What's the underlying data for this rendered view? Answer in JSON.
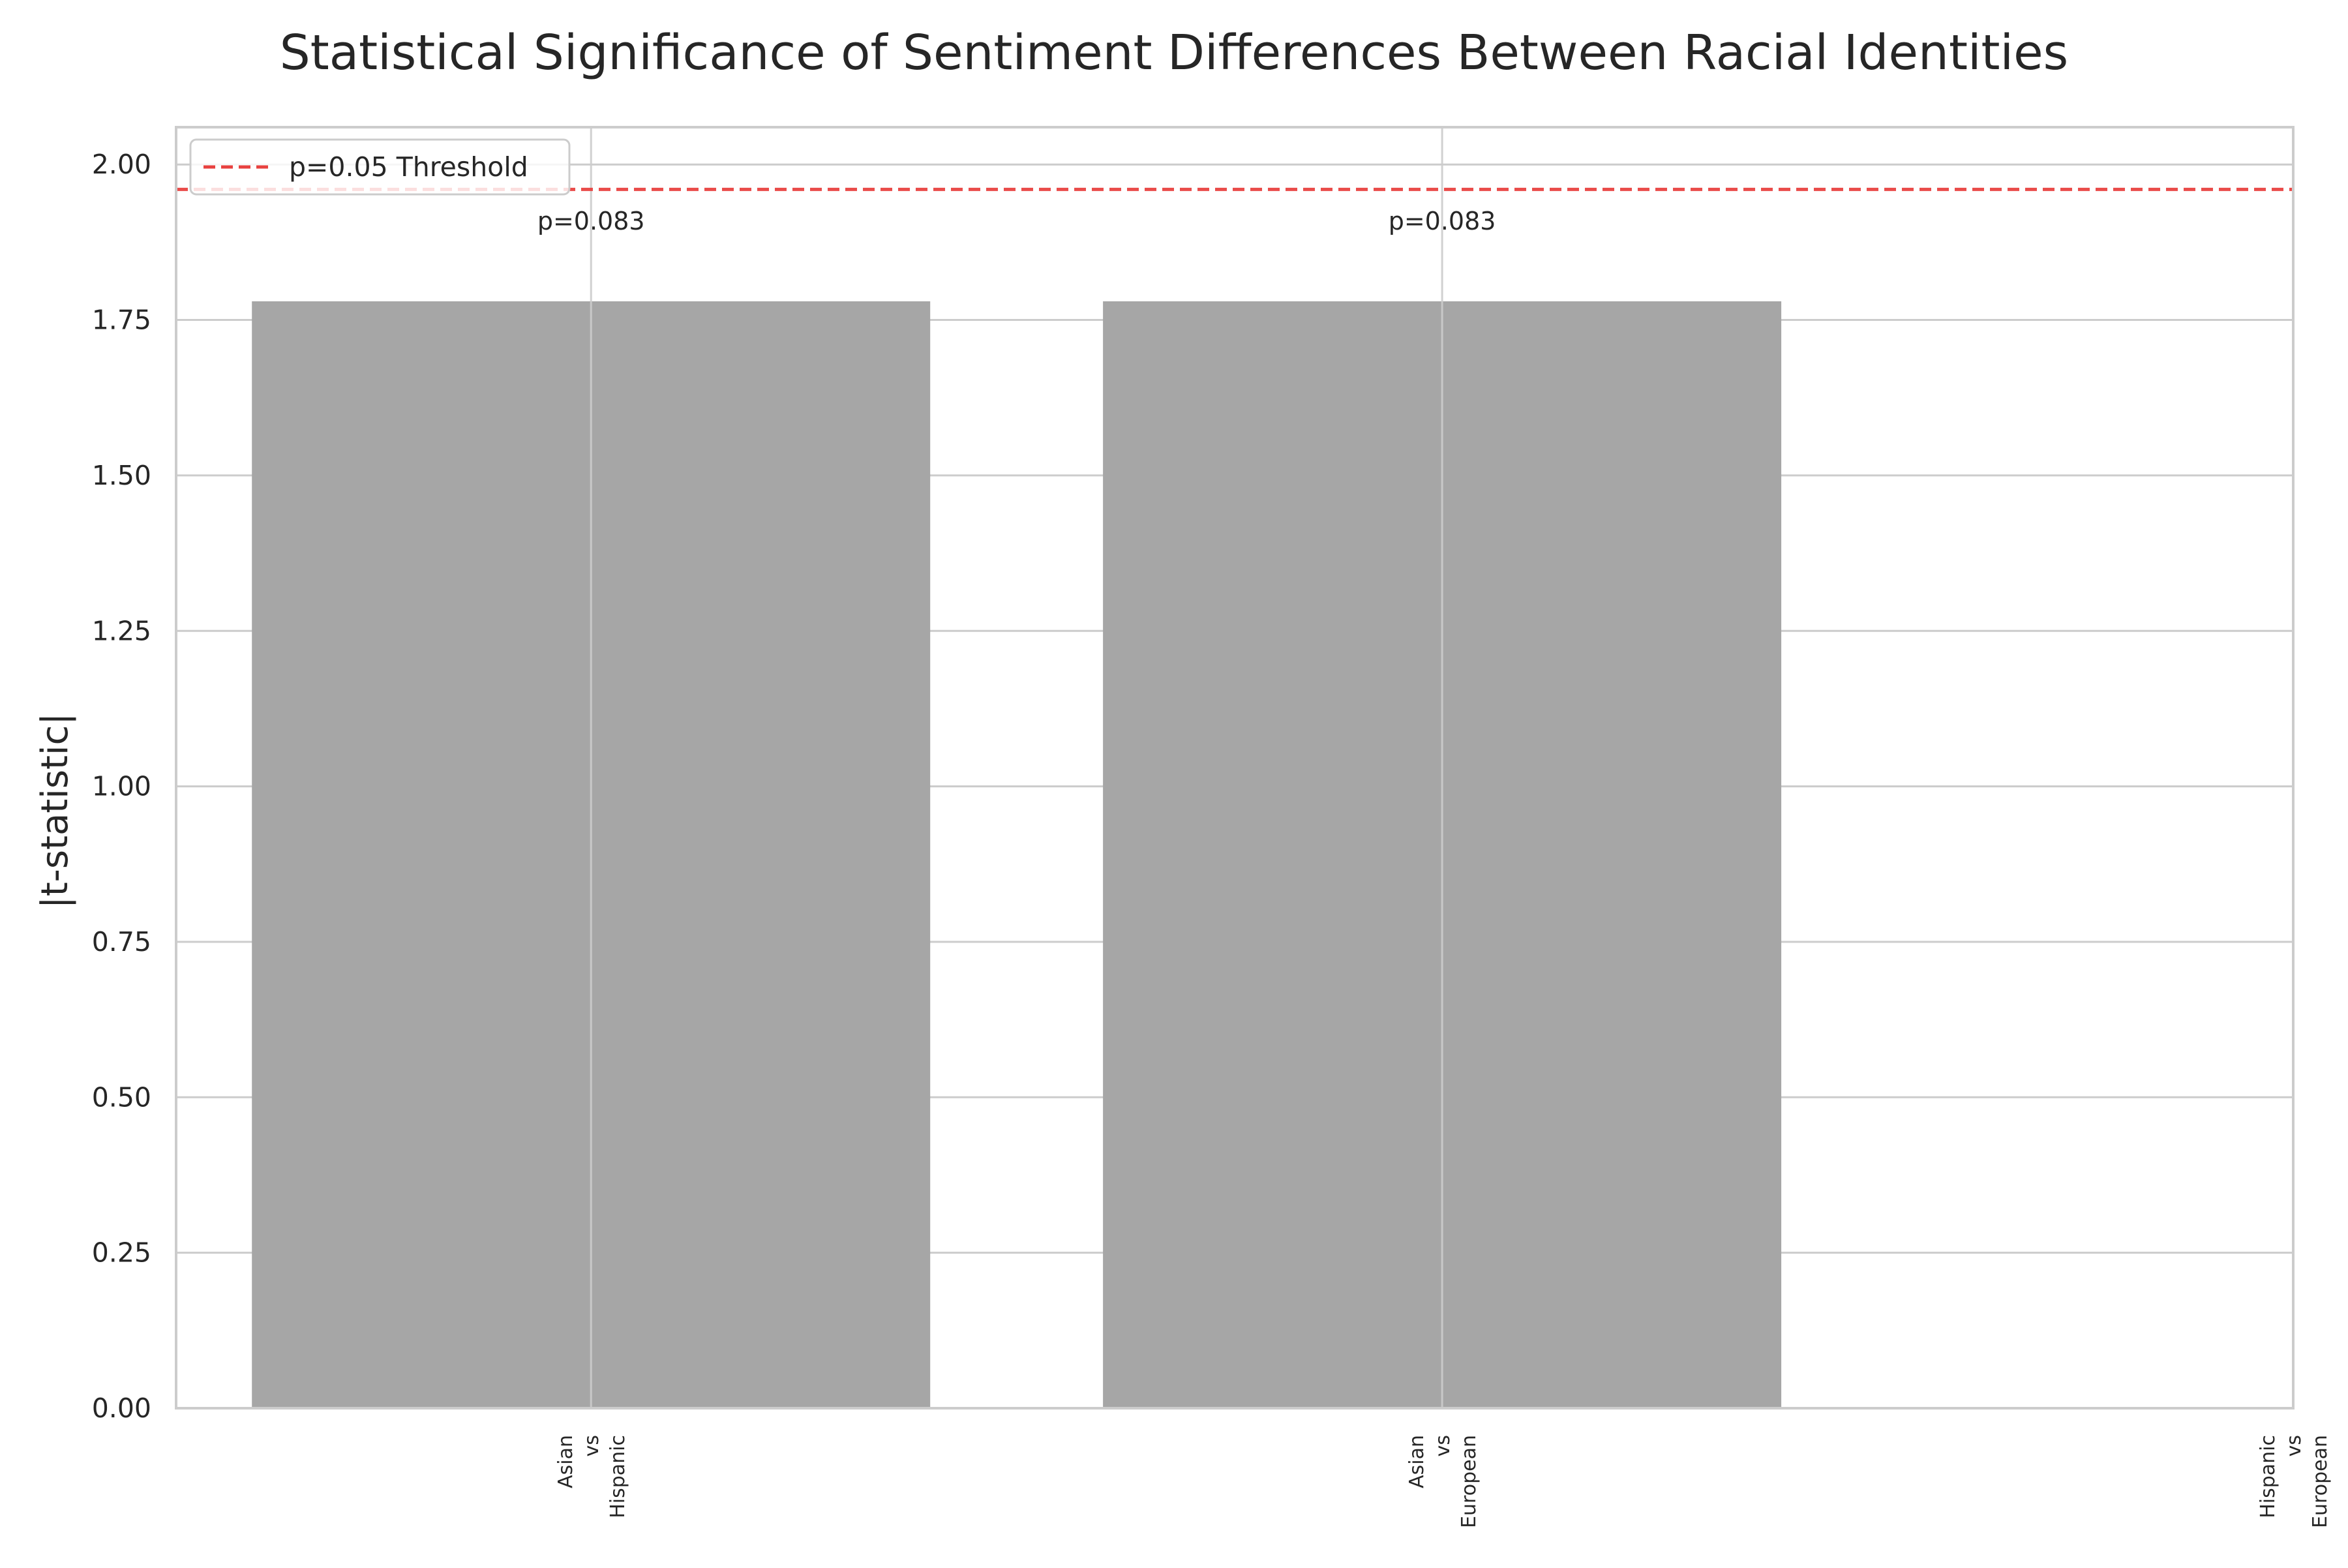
{
  "chart_data": {
    "type": "bar",
    "title": "Statistical Significance of Sentiment Differences Between Racial Identities",
    "xlabel": "",
    "ylabel": "|t-statistic|",
    "categories": [
      [
        "Asian",
        "vs",
        "Hispanic"
      ],
      [
        "Asian",
        "vs",
        "European"
      ],
      [
        "Hispanic",
        "vs",
        "European"
      ]
    ],
    "values": [
      1.78,
      1.78,
      0
    ],
    "annotations": [
      "p=0.083",
      "p=0.083",
      ""
    ],
    "ylim": [
      0,
      2.06
    ],
    "yticks": [
      "0.00",
      "0.25",
      "0.50",
      "0.75",
      "1.00",
      "1.25",
      "1.50",
      "1.75",
      "2.00"
    ],
    "threshold": {
      "value": 1.96,
      "label": "p=0.05 Threshold",
      "color": "#e8413f",
      "style": "dashed"
    },
    "bar_color": "#a6a6a6",
    "grid": true,
    "legend_position": "upper left"
  }
}
